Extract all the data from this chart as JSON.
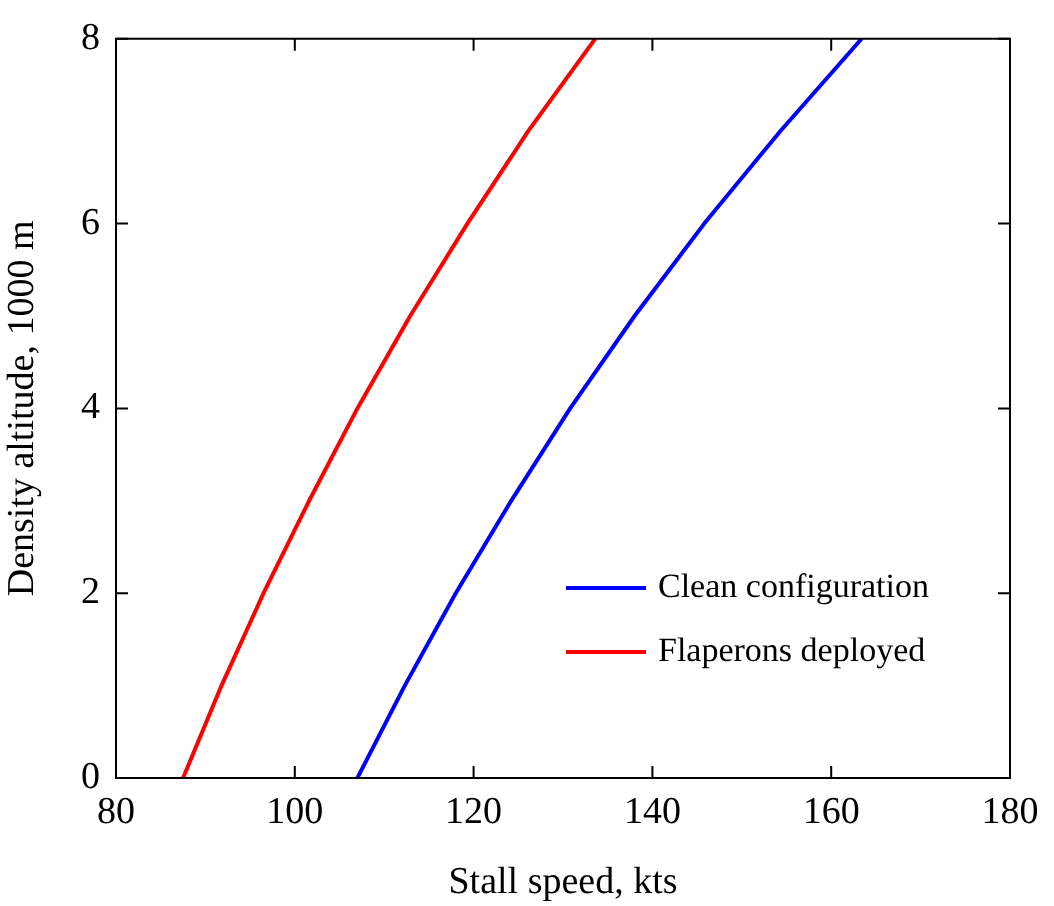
{
  "chart_data": {
    "type": "line",
    "xlabel": "Stall speed, kts",
    "ylabel": "Density altitude, 1000 m",
    "xlim": [
      80,
      180
    ],
    "xticks": [
      80,
      100,
      120,
      140,
      160,
      180
    ],
    "ylim": [
      0,
      8
    ],
    "yticks": [
      0,
      2,
      4,
      6,
      8
    ],
    "grid": false,
    "legend": "bottom right",
    "marker": "none",
    "line_style": "solid",
    "series": [
      {
        "name": "Clean configuration",
        "color": "#0000ff",
        "x": [
          107,
          112.3,
          118.0,
          124.2,
          130.8,
          138.0,
          145.8,
          154.3,
          163.4
        ],
        "values": [
          0,
          1,
          2,
          3,
          4,
          5,
          6,
          7,
          8
        ]
      },
      {
        "name": "Flaperons deployed",
        "color": "#ff0000",
        "x": [
          87.5,
          91.8,
          96.5,
          101.6,
          107.0,
          112.9,
          119.3,
          126.1,
          133.6
        ],
        "values": [
          0,
          1,
          2,
          3,
          4,
          5,
          6,
          7,
          8
        ]
      }
    ]
  }
}
